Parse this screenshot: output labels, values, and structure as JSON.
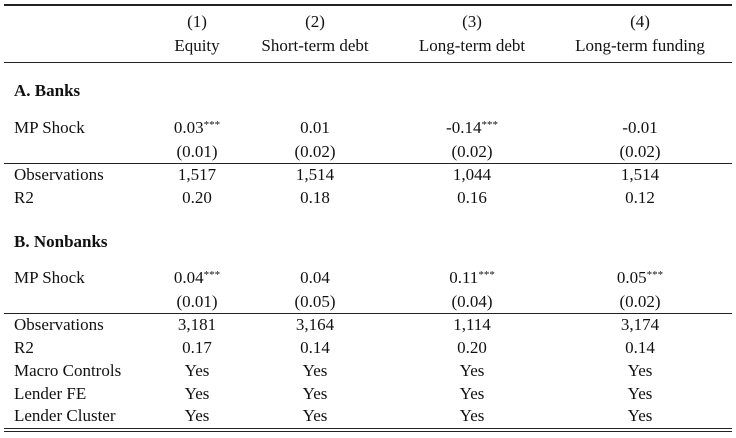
{
  "columns": [
    {
      "number": "(1)",
      "name": "Equity"
    },
    {
      "number": "(2)",
      "name": "Short-term debt"
    },
    {
      "number": "(3)",
      "name": "Long-term debt"
    },
    {
      "number": "(4)",
      "name": "Long-term funding"
    }
  ],
  "panel_a": {
    "title": "A. Banks",
    "mp_shock": {
      "label": "MP Shock",
      "coefs": [
        {
          "value": "0.03",
          "stars": "***"
        },
        {
          "value": "0.01",
          "stars": ""
        },
        {
          "value": "-0.14",
          "stars": "***"
        },
        {
          "value": "-0.01",
          "stars": ""
        }
      ],
      "se": [
        "(0.01)",
        "(0.02)",
        "(0.02)",
        "(0.02)"
      ]
    },
    "observations": {
      "label": "Observations",
      "values": [
        "1,517",
        "1,514",
        "1,044",
        "1,514"
      ]
    },
    "r2": {
      "label": "R2",
      "values": [
        "0.20",
        "0.18",
        "0.16",
        "0.12"
      ]
    }
  },
  "panel_b": {
    "title": "B. Nonbanks",
    "mp_shock": {
      "label": "MP Shock",
      "coefs": [
        {
          "value": "0.04",
          "stars": "***"
        },
        {
          "value": "0.04",
          "stars": ""
        },
        {
          "value": "0.11",
          "stars": "***"
        },
        {
          "value": "0.05",
          "stars": "***"
        }
      ],
      "se": [
        "(0.01)",
        "(0.05)",
        "(0.04)",
        "(0.02)"
      ]
    },
    "observations": {
      "label": "Observations",
      "values": [
        "3,181",
        "3,164",
        "1,114",
        "3,174"
      ]
    },
    "r2": {
      "label": "R2",
      "values": [
        "0.17",
        "0.14",
        "0.20",
        "0.14"
      ]
    }
  },
  "controls": [
    {
      "label": "Macro Controls",
      "values": [
        "Yes",
        "Yes",
        "Yes",
        "Yes"
      ]
    },
    {
      "label": "Lender FE",
      "values": [
        "Yes",
        "Yes",
        "Yes",
        "Yes"
      ]
    },
    {
      "label": "Lender Cluster",
      "values": [
        "Yes",
        "Yes",
        "Yes",
        "Yes"
      ]
    }
  ]
}
